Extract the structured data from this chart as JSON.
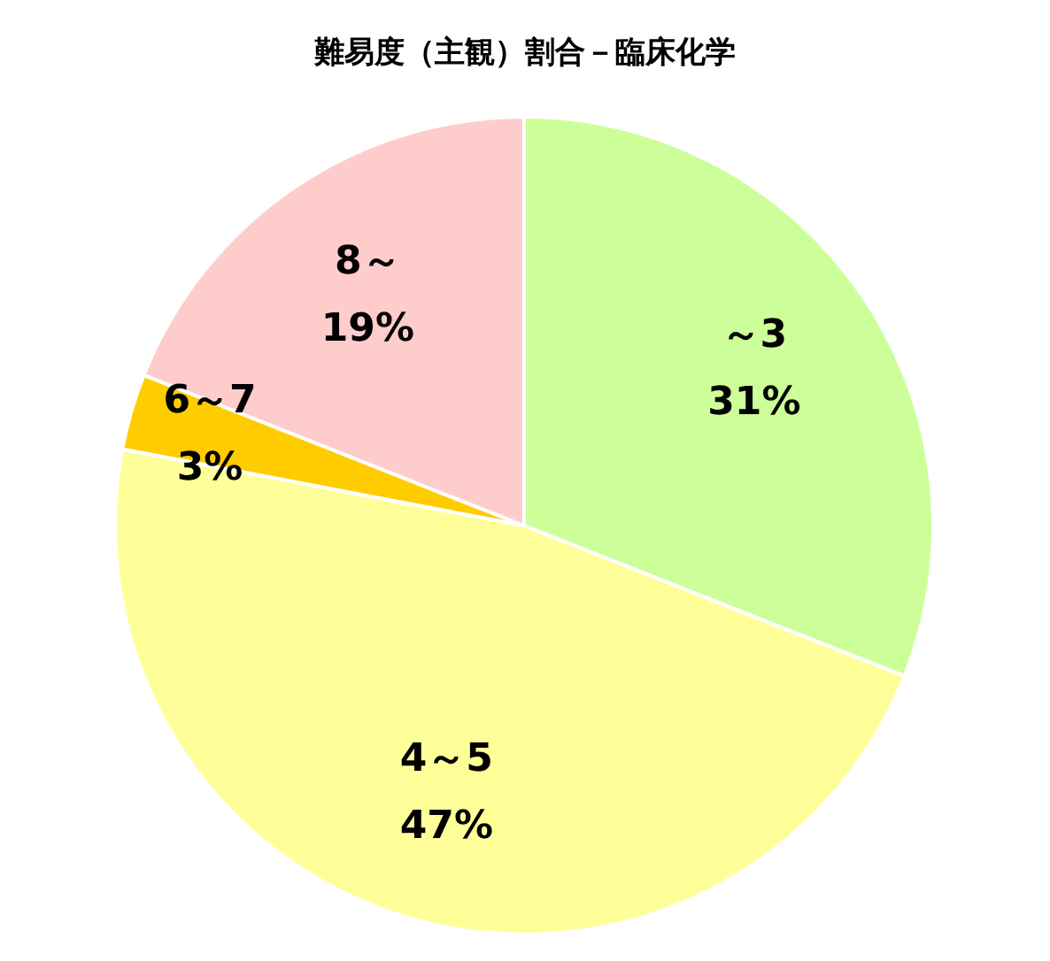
{
  "chart_data": {
    "type": "pie",
    "title": "難易度（主観）割合－臨床化学",
    "categories": [
      "～3",
      "4～5",
      "6～7",
      "8～"
    ],
    "values": [
      31,
      47,
      3,
      19
    ],
    "value_labels": [
      "31%",
      "47%",
      "3%",
      "19%"
    ],
    "colors": [
      "#ccff99",
      "#ffff99",
      "#ffcc00",
      "#ffcccc"
    ]
  }
}
